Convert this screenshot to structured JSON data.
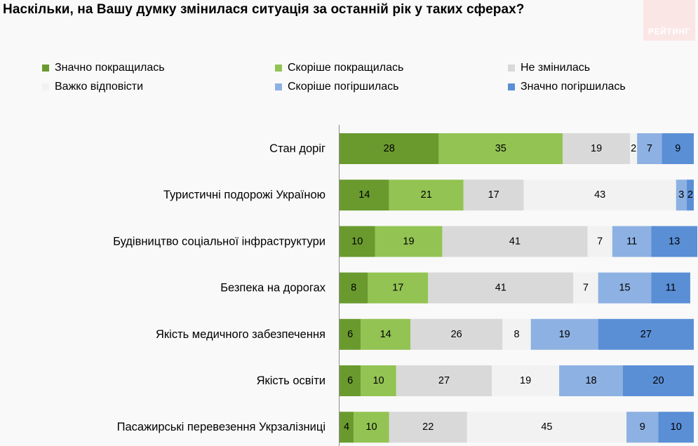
{
  "title": "Наскільки, на Вашу думку змінилася ситуація за останній рік у таких сферах?",
  "logo": {
    "text": "РЕЙТИНГ"
  },
  "colors": {
    "sig_better": "#6a9a2e",
    "better": "#93c353",
    "same": "#d9d9d9",
    "hard": "#f2f2f2",
    "worse": "#8db1e2",
    "sig_worse": "#5a8fd6"
  },
  "chart_data": {
    "type": "bar",
    "orientation": "horizontal",
    "stacked": true,
    "title": "Наскільки, на Вашу думку змінилася ситуація за останній рік у таких сферах?",
    "xlim": [
      0,
      100
    ],
    "grid": false,
    "legend_position": "top",
    "categories": [
      "Стан доріг",
      "Туристичні подорожі Україною",
      "Будівництво соціальної інфраструктури",
      "Безпека на дорогах",
      "Якість медичного забезпечення",
      "Якість освіти",
      "Пасажирські перевезення Укрзалізниці"
    ],
    "series": [
      {
        "name": "Значно покращилась",
        "color": "#6a9a2e",
        "values": [
          28,
          14,
          10,
          8,
          6,
          6,
          4
        ]
      },
      {
        "name": "Скоріше покращилась",
        "color": "#93c353",
        "values": [
          35,
          21,
          19,
          17,
          14,
          10,
          10
        ]
      },
      {
        "name": "Не змінилась",
        "color": "#d9d9d9",
        "values": [
          19,
          17,
          41,
          41,
          26,
          27,
          22
        ]
      },
      {
        "name": "Важко відповісти",
        "color": "#f2f2f2",
        "values": [
          2,
          43,
          7,
          7,
          8,
          19,
          45
        ]
      },
      {
        "name": "Скоріше погіршилась",
        "color": "#8db1e2",
        "values": [
          7,
          3,
          11,
          15,
          19,
          18,
          9
        ]
      },
      {
        "name": "Значно погіршилась",
        "color": "#5a8fd6",
        "values": [
          9,
          2,
          13,
          11,
          27,
          20,
          10
        ]
      }
    ]
  }
}
